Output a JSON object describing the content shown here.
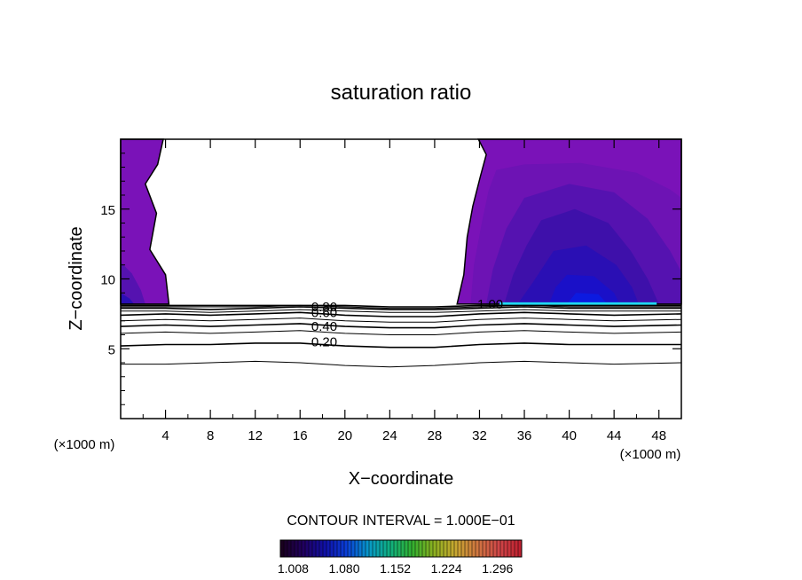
{
  "chart_data": {
    "type": "heatmap",
    "title": "saturation ratio",
    "xlabel": "X−coordinate",
    "ylabel": "Z−coordinate",
    "x_unit_left": "(×1000 m)",
    "x_unit_right": "(×1000 m)",
    "xlim": [
      0,
      50
    ],
    "ylim": [
      0,
      20
    ],
    "x_ticks": [
      4,
      8,
      12,
      16,
      20,
      24,
      28,
      32,
      36,
      40,
      44,
      48
    ],
    "y_ticks": [
      5,
      10,
      15
    ],
    "contour_interval_text": "CONTOUR INTERVAL = 1.000E−01",
    "contour_labels": [
      {
        "text": "0.80",
        "x": 17.0,
        "z": 8.0
      },
      {
        "text": "0.60",
        "x": 17.0,
        "z": 7.6
      },
      {
        "text": "0.40",
        "x": 17.0,
        "z": 6.6
      },
      {
        "text": "0.20",
        "x": 17.0,
        "z": 5.5
      },
      {
        "text": "1.00",
        "x": 31.8,
        "z": 8.2
      }
    ],
    "contour_levels": [
      {
        "value": 0.1,
        "z": [
          3.9,
          3.9,
          4.0,
          4.1,
          4.0,
          3.8,
          3.7,
          3.8,
          4.0,
          4.1,
          4.0,
          3.9,
          4.0
        ]
      },
      {
        "value": 0.2,
        "z": [
          5.2,
          5.3,
          5.3,
          5.4,
          5.4,
          5.2,
          5.1,
          5.1,
          5.3,
          5.4,
          5.3,
          5.3,
          5.3
        ]
      },
      {
        "value": 0.3,
        "z": [
          6.1,
          6.2,
          6.1,
          6.2,
          6.3,
          6.1,
          6.0,
          6.0,
          6.2,
          6.3,
          6.2,
          6.1,
          6.2
        ]
      },
      {
        "value": 0.4,
        "z": [
          6.6,
          6.7,
          6.6,
          6.7,
          6.8,
          6.6,
          6.5,
          6.5,
          6.7,
          6.8,
          6.7,
          6.6,
          6.7
        ]
      },
      {
        "value": 0.5,
        "z": [
          7.0,
          7.1,
          7.0,
          7.1,
          7.2,
          7.0,
          6.9,
          6.9,
          7.1,
          7.2,
          7.1,
          7.0,
          7.1
        ]
      },
      {
        "value": 0.6,
        "z": [
          7.4,
          7.5,
          7.4,
          7.5,
          7.6,
          7.4,
          7.3,
          7.3,
          7.5,
          7.6,
          7.5,
          7.4,
          7.5
        ]
      },
      {
        "value": 0.7,
        "z": [
          7.7,
          7.7,
          7.6,
          7.7,
          7.8,
          7.7,
          7.6,
          7.6,
          7.7,
          7.8,
          7.7,
          7.7,
          7.7
        ]
      },
      {
        "value": 0.8,
        "z": [
          7.9,
          7.9,
          7.8,
          7.9,
          8.0,
          7.9,
          7.8,
          7.8,
          7.9,
          8.0,
          7.9,
          7.9,
          7.9
        ]
      },
      {
        "value": 0.9,
        "z": [
          8.0,
          8.0,
          8.0,
          8.0,
          8.1,
          8.0,
          7.9,
          7.9,
          8.0,
          8.1,
          8.0,
          8.0,
          8.0
        ]
      },
      {
        "value": 1.0,
        "z": [
          8.1,
          8.1,
          8.1,
          8.1,
          8.1,
          8.1,
          8.0,
          8.0,
          8.1,
          8.1,
          8.1,
          8.1,
          8.1
        ]
      }
    ],
    "contour_x": [
      0,
      4,
      8,
      12,
      16,
      20,
      24,
      28,
      32,
      36,
      40,
      44,
      50
    ],
    "supersaturated_regions": [
      {
        "name": "left",
        "boundary": [
          [
            0,
            20
          ],
          [
            3.8,
            20
          ],
          [
            3.3,
            18.2
          ],
          [
            2.2,
            16.8
          ],
          [
            3.2,
            14.7
          ],
          [
            2.6,
            12.1
          ],
          [
            4.0,
            10.3
          ],
          [
            4.3,
            8.2
          ],
          [
            0,
            8.2
          ]
        ]
      },
      {
        "name": "right",
        "boundary": [
          [
            31.9,
            20
          ],
          [
            50,
            20
          ],
          [
            50,
            8.2
          ],
          [
            30.0,
            8.2
          ],
          [
            30.6,
            10.3
          ],
          [
            30.9,
            13.0
          ],
          [
            31.4,
            15.2
          ],
          [
            32.1,
            17.4
          ],
          [
            32.6,
            18.9
          ]
        ]
      }
    ],
    "shading_levels": [
      {
        "level": 1,
        "color": "#7a12b8",
        "boundary": [
          [
            31.9,
            20
          ],
          [
            50,
            20
          ],
          [
            50,
            8.2
          ],
          [
            30.0,
            8.2
          ],
          [
            30.6,
            10.3
          ],
          [
            30.9,
            13.0
          ],
          [
            31.4,
            15.2
          ],
          [
            32.1,
            17.4
          ],
          [
            32.6,
            18.9
          ]
        ]
      },
      {
        "level": 2,
        "color": "#6d13b4",
        "boundary": [
          [
            33.5,
            17.8
          ],
          [
            36,
            18.2
          ],
          [
            41,
            18.3
          ],
          [
            46,
            17.6
          ],
          [
            49,
            16.4
          ],
          [
            50,
            15.8
          ],
          [
            50,
            8.2
          ],
          [
            31.2,
            8.2
          ],
          [
            31.5,
            11
          ],
          [
            32.2,
            14
          ],
          [
            32.8,
            16.3
          ]
        ]
      },
      {
        "level": 3,
        "color": "#5512b0",
        "boundary": [
          [
            36,
            15.8
          ],
          [
            40,
            16.8
          ],
          [
            44,
            16.2
          ],
          [
            47,
            14.3
          ],
          [
            49,
            12
          ],
          [
            50,
            10.5
          ],
          [
            50,
            8.2
          ],
          [
            32.6,
            8.2
          ],
          [
            33.2,
            10.7
          ],
          [
            34.4,
            13.6
          ]
        ]
      },
      {
        "level": 4,
        "color": "#3e10aa",
        "boundary": [
          [
            37.5,
            14.2
          ],
          [
            40.5,
            15.0
          ],
          [
            43.5,
            14.0
          ],
          [
            45.5,
            12.0
          ],
          [
            47,
            10.0
          ],
          [
            48,
            8.2
          ],
          [
            34.2,
            8.2
          ],
          [
            35.0,
            10.3
          ],
          [
            36.2,
            12.4
          ]
        ]
      },
      {
        "level": 5,
        "color": "#2a0fb4",
        "boundary": [
          [
            38.6,
            12.0
          ],
          [
            41.5,
            12.4
          ],
          [
            44.2,
            11.0
          ],
          [
            45.6,
            9.4
          ],
          [
            46.2,
            8.2
          ],
          [
            35.4,
            8.2
          ],
          [
            36.8,
            9.8
          ]
        ]
      },
      {
        "level": 6,
        "color": "#1a10c8",
        "boundary": [
          [
            39.8,
            10.3
          ],
          [
            42.2,
            10.2
          ],
          [
            44.0,
            9.0
          ],
          [
            44.5,
            8.2
          ],
          [
            38.2,
            8.2
          ],
          [
            38.8,
            9.4
          ]
        ]
      },
      {
        "level": 7,
        "color": "#0c1ae0",
        "boundary": [
          [
            40.6,
            9.0
          ],
          [
            42.6,
            8.9
          ],
          [
            43.4,
            8.2
          ],
          [
            39.8,
            8.2
          ]
        ]
      },
      {
        "level": 1,
        "color": "#7a12b8",
        "boundary": [
          [
            0,
            20
          ],
          [
            3.8,
            20
          ],
          [
            3.3,
            18.2
          ],
          [
            2.2,
            16.8
          ],
          [
            3.2,
            14.7
          ],
          [
            2.6,
            12.1
          ],
          [
            4.0,
            10.3
          ],
          [
            4.3,
            8.2
          ],
          [
            0,
            8.2
          ]
        ]
      },
      {
        "level": 3,
        "color": "#5512b0",
        "boundary": [
          [
            0,
            11.2
          ],
          [
            1.0,
            10.4
          ],
          [
            1.8,
            9.2
          ],
          [
            2.2,
            8.2
          ],
          [
            0,
            8.2
          ]
        ]
      },
      {
        "level": 5,
        "color": "#2a0fb4",
        "boundary": [
          [
            0,
            9.0
          ],
          [
            0.8,
            8.6
          ],
          [
            1.2,
            8.2
          ],
          [
            0,
            8.2
          ]
        ]
      }
    ],
    "highlight_line": {
      "color": "#20d8f0",
      "x": [
        33.8,
        47.8
      ],
      "z": 8.2
    },
    "colorbar": {
      "tick_labels": [
        "1.008",
        "1.080",
        "1.152",
        "1.224",
        "1.296"
      ],
      "range": [
        0.99,
        1.33
      ],
      "colors": [
        "#1a0020",
        "#200060",
        "#1010a8",
        "#0a40d8",
        "#0898c8",
        "#10b080",
        "#30b030",
        "#8ab020",
        "#c8a830",
        "#d07840",
        "#d04848",
        "#c02030"
      ]
    }
  }
}
